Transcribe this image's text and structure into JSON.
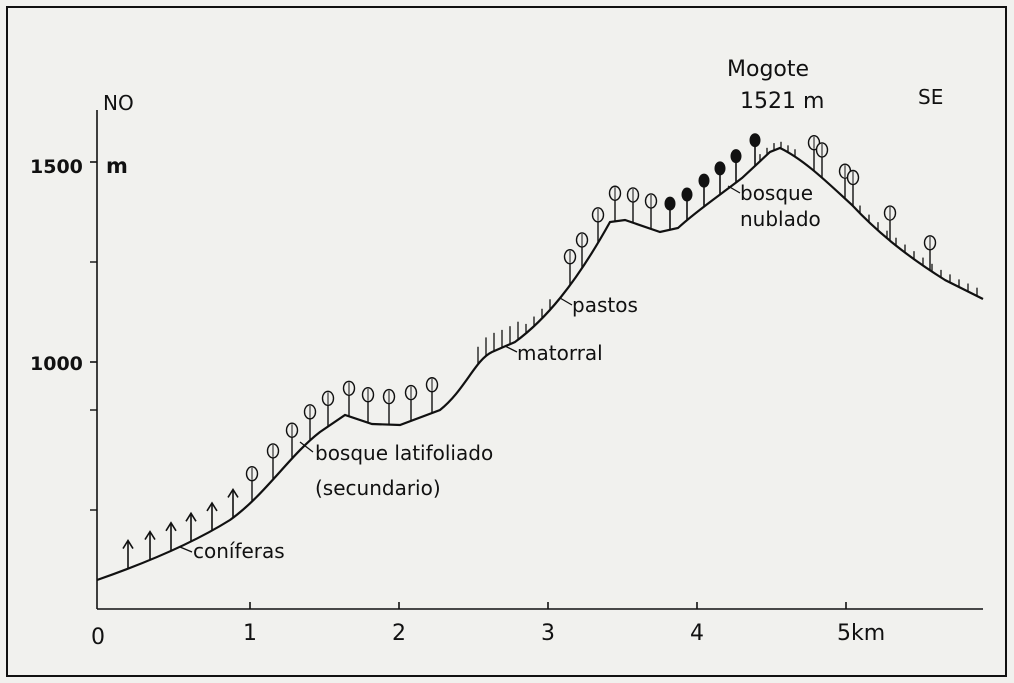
{
  "direction": {
    "left": "NO",
    "right": "SE"
  },
  "peak": {
    "name": "Mogote",
    "elevation": "1521 m"
  },
  "y_axis": {
    "unit": "m",
    "ticks": [
      "1500",
      "1000"
    ]
  },
  "x_axis": {
    "ticks": [
      "0",
      "1",
      "2",
      "3",
      "4"
    ],
    "last_tick": "5km"
  },
  "zones": {
    "coniferas": "coníferas",
    "bosque_latifoliado": "bosque latifoliado",
    "secundario": "(secundario)",
    "matorral": "matorral",
    "pastos": "pastos",
    "bosque_nublado_1": "bosque",
    "bosque_nublado_2": "nublado"
  },
  "colors": {
    "ink": "#111111",
    "background": "#f1f1ee"
  },
  "icons": {
    "conifer": "arrow-up-tree-icon",
    "broadleaf": "open-oval-tree-icon",
    "cloud_forest": "filled-oval-tree-icon",
    "grass": "short-vertical-tick-icon"
  }
}
